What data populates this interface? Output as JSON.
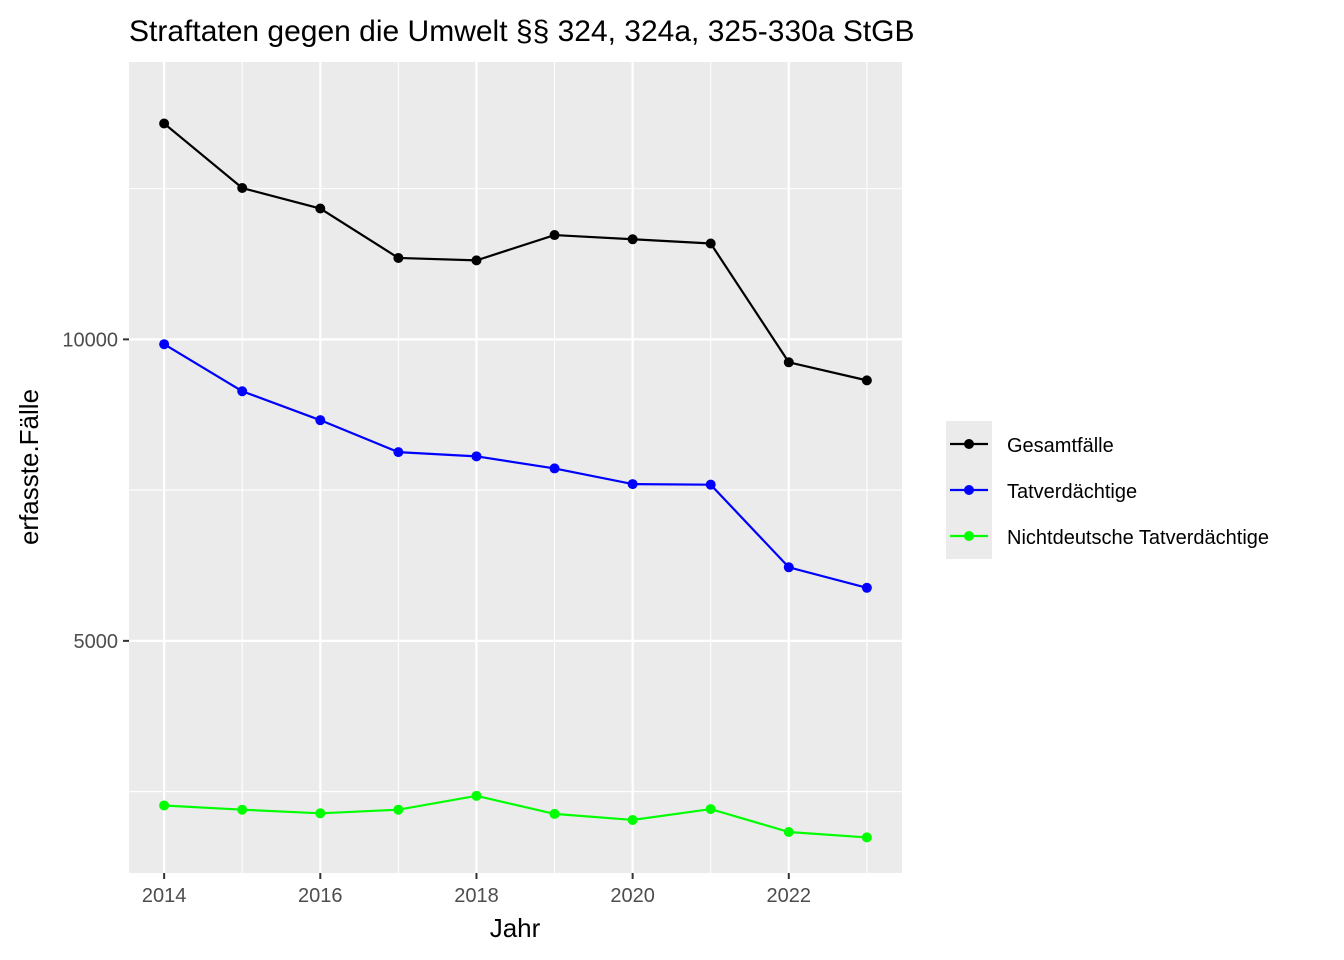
{
  "chart_data": {
    "type": "line",
    "title": "Straftaten gegen die Umwelt §§ 324, 324a, 325-330a StGB",
    "xlabel": "Jahr",
    "ylabel": "erfasste.Fälle",
    "x": [
      2014,
      2015,
      2016,
      2017,
      2018,
      2019,
      2020,
      2021,
      2022,
      2023
    ],
    "xlim": [
      2013.55,
      2023.45
    ],
    "ylim": [
      1150,
      14600
    ],
    "x_ticks": [
      2014,
      2016,
      2018,
      2020,
      2022
    ],
    "y_ticks": [
      5000,
      10000
    ],
    "x_tick_labels": [
      "2014",
      "2016",
      "2018",
      "2020",
      "2022"
    ],
    "y_tick_labels": [
      "5000",
      "10000"
    ],
    "grid": true,
    "legend_position": "right",
    "series": [
      {
        "name": "Gesamtfälle",
        "color": "#000000",
        "values": [
          13580,
          12510,
          12170,
          11350,
          11310,
          11730,
          11660,
          11590,
          9620,
          9320
        ]
      },
      {
        "name": "Tatverdächtige",
        "color": "#0000ff",
        "values": [
          9920,
          9140,
          8660,
          8130,
          8060,
          7860,
          7600,
          7590,
          6220,
          5880
        ]
      },
      {
        "name": "Nichtdeutsche Tatverdächtige",
        "color": "#00ff00",
        "values": [
          2270,
          2200,
          2140,
          2200,
          2430,
          2130,
          2030,
          2210,
          1830,
          1740
        ]
      }
    ]
  }
}
